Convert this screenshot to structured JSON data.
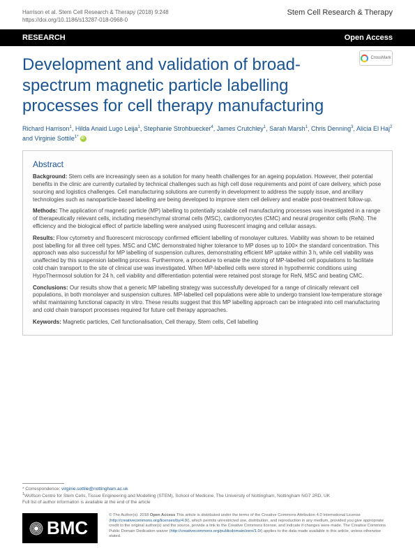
{
  "header": {
    "citation_line": "Harrison et al. Stem Cell Research & Therapy   (2018) 9:248",
    "doi": "https://doi.org/10.1186/s13287-018-0968-0",
    "journal": "Stem Cell Research & Therapy"
  },
  "bar": {
    "left": "RESEARCH",
    "right": "Open Access"
  },
  "crossmark_label": "CrossMark",
  "title": "Development and validation of broad-spectrum magnetic particle labelling processes for cell therapy manufacturing",
  "authors": {
    "a1": "Richard Harrison",
    "s1": "1",
    "a2": "Hilda Anaid Lugo Leija",
    "s2": "1",
    "a3": "Stephanie Strohbuecker",
    "s3": "4",
    "a4": "James Crutchley",
    "s4": "1",
    "a5": "Sarah Marsh",
    "s5": "1",
    "a6": "Chris Denning",
    "s6": "3",
    "a7": "Alicia El Haj",
    "s7": "2",
    "a8": "Virginie Sottile",
    "s8": "1*"
  },
  "abstract": {
    "heading": "Abstract",
    "background_label": "Background:",
    "background": "Stem cells are increasingly seen as a solution for many health challenges for an ageing population. However, their potential benefits in the clinic are currently curtailed by technical challenges such as high cell dose requirements and point of care delivery, which pose sourcing and logistics challenges. Cell manufacturing solutions are currently in development to address the supply issue, and ancillary technologies such as nanoparticle-based labelling are being developed to improve stem cell delivery and enable post-treatment follow-up.",
    "methods_label": "Methods:",
    "methods": "The application of magnetic particle (MP) labelling to potentially scalable cell manufacturing processes was investigated in a range of therapeutically relevant cells, including mesenchymal stromal cells (MSC), cardiomyocytes (CMC) and neural progenitor cells (ReN). The efficiency and the biological effect of particle labelling were analysed using fluorescent imaging and cellular assays.",
    "results_label": "Results:",
    "results": "Flow cytometry and fluorescent microscopy confirmed efficient labelling of monolayer cultures. Viability was shown to be retained post labelling for all three cell types. MSC and CMC demonstrated higher tolerance to MP doses up to 100× the standard concentration. This approach was also successful for MP labelling of suspension cultures, demonstrating efficient MP uptake within 3 h, while cell viability was unaffected by this suspension labelling process. Furthermore, a procedure to enable the storing of MP-labelled cell populations to facilitate cold chain transport to the site of clinical use was investigated. When MP-labelled cells were stored in hypothermic conditions using HypoThermosol solution for 24 h, cell viability and differentiation potential were retained post storage for ReN, MSC and beating CMC.",
    "conclusions_label": "Conclusions:",
    "conclusions": "Our results show that a generic MP labelling strategy was successfully developed for a range of clinically relevant cell populations, in both monolayer and suspension cultures. MP-labelled cell populations were able to undergo transient low-temperature storage whilst maintaining functional capacity in vitro. These results suggest that this MP labelling approach can be integrated into cell manufacturing and cold chain transport processes required for future cell therapy approaches.",
    "keywords_label": "Keywords:",
    "keywords": "Magnetic particles, Cell functionalisation, Cell therapy, Stem cells, Cell labelling"
  },
  "correspondence": {
    "line1": "* Correspondence: ",
    "email": "virginie.sottile@nottingham.ac.uk",
    "line2": "Wolfson Centre for Stem Cells, Tissue Engineering and Modelling (STEM), School of Medicine, The University of Nottingham, Nottingham NG7 2RD, UK",
    "line3": "Full list of author information is available at the end of the article"
  },
  "bmc": "BMC",
  "license": {
    "text1": "© The Author(s). 2018 ",
    "open_access": "Open Access",
    "text2": " This article is distributed under the terms of the Creative Commons Attribution 4.0 International License (",
    "link1": "http://creativecommons.org/licenses/by/4.0/",
    "text3": "), which permits unrestricted use, distribution, and reproduction in any medium, provided you give appropriate credit to the original author(s) and the source, provide a link to the Creative Commons license, and indicate if changes were made. The Creative Commons Public Domain Dedication waiver (",
    "link2": "http://creativecommons.org/publicdomain/zero/1.0/",
    "text4": ") applies to the data made available in this article, unless otherwise stated."
  },
  "colors": {
    "title_color": "#1a5490",
    "bar_bg": "#000000",
    "text": "#333333"
  }
}
